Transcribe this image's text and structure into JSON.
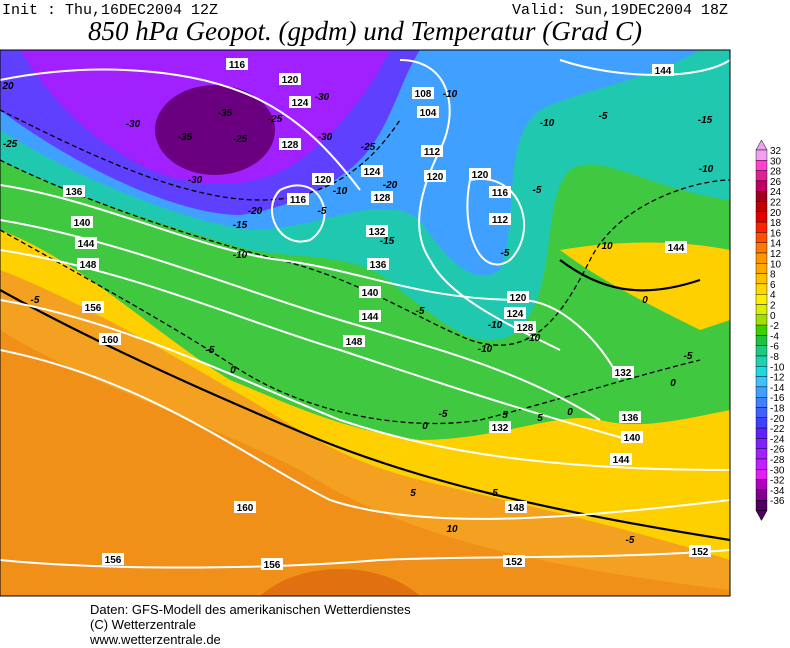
{
  "header": {
    "init": "Init : Thu,16DEC2004 12Z",
    "valid": "Valid: Sun,19DEC2004 18Z",
    "title": "850 hPa Geopot. (gpdm) und Temperatur (Grad C)"
  },
  "colorbar": {
    "labels": [
      32,
      30,
      28,
      26,
      24,
      22,
      20,
      18,
      16,
      14,
      12,
      10,
      8,
      6,
      4,
      2,
      0,
      -2,
      -4,
      -6,
      -8,
      -10,
      -12,
      -14,
      -16,
      -18,
      -20,
      -22,
      -24,
      -26,
      -28,
      -30,
      -32,
      -34,
      -36
    ],
    "colors": [
      "#f0a0f0",
      "#ff40d0",
      "#e02090",
      "#c00060",
      "#a00020",
      "#c00000",
      "#e00000",
      "#ff2000",
      "#ff5000",
      "#ff7800",
      "#ff9600",
      "#ffa800",
      "#ffc000",
      "#ffd800",
      "#ffee00",
      "#d8f000",
      "#a0e000",
      "#40d000",
      "#20c040",
      "#20c880",
      "#20d0b0",
      "#20d8e0",
      "#40c0ff",
      "#40a0ff",
      "#4080ff",
      "#4060ff",
      "#4040ff",
      "#6020ff",
      "#8020ff",
      "#a020ff",
      "#c020ff",
      "#e020f0",
      "#b000c0",
      "#800090",
      "#500060"
    ]
  },
  "map": {
    "labels": [
      "116",
      "120",
      "124",
      "-30",
      "-35",
      "-30",
      "-35",
      "-25",
      "-25",
      "128",
      "-30",
      "-25",
      "108",
      "-10",
      "104",
      "112",
      "-10",
      "-5",
      "144",
      "-15",
      "-10",
      "20",
      "-25",
      "136",
      "140",
      "144",
      "148",
      "-5",
      "156",
      "160",
      "-30",
      "120",
      "-10",
      "124",
      "-20",
      "128",
      "116",
      "-5",
      "-20",
      "-15",
      "-10",
      "120",
      "120",
      "116",
      "-5",
      "112",
      "-5",
      "132",
      "-15",
      "136",
      "140",
      "144",
      "148",
      "-5",
      "0",
      "-5",
      "120",
      "124",
      "-10",
      "128",
      "-10",
      "-10",
      "10",
      "144",
      "0",
      "-5",
      "132",
      "0",
      "-5",
      "0",
      "5",
      "132",
      "5",
      "0",
      "136",
      "140",
      "144",
      "5",
      "5",
      "148",
      "160",
      "10",
      "-5",
      "152",
      "156",
      "156",
      "152"
    ]
  },
  "footer": {
    "source": "Daten: GFS-Modell des amerikanischen Wetterdienstes",
    "copyright": "(C) Wetterzentrale",
    "url": "www.wetterzentrale.de"
  }
}
